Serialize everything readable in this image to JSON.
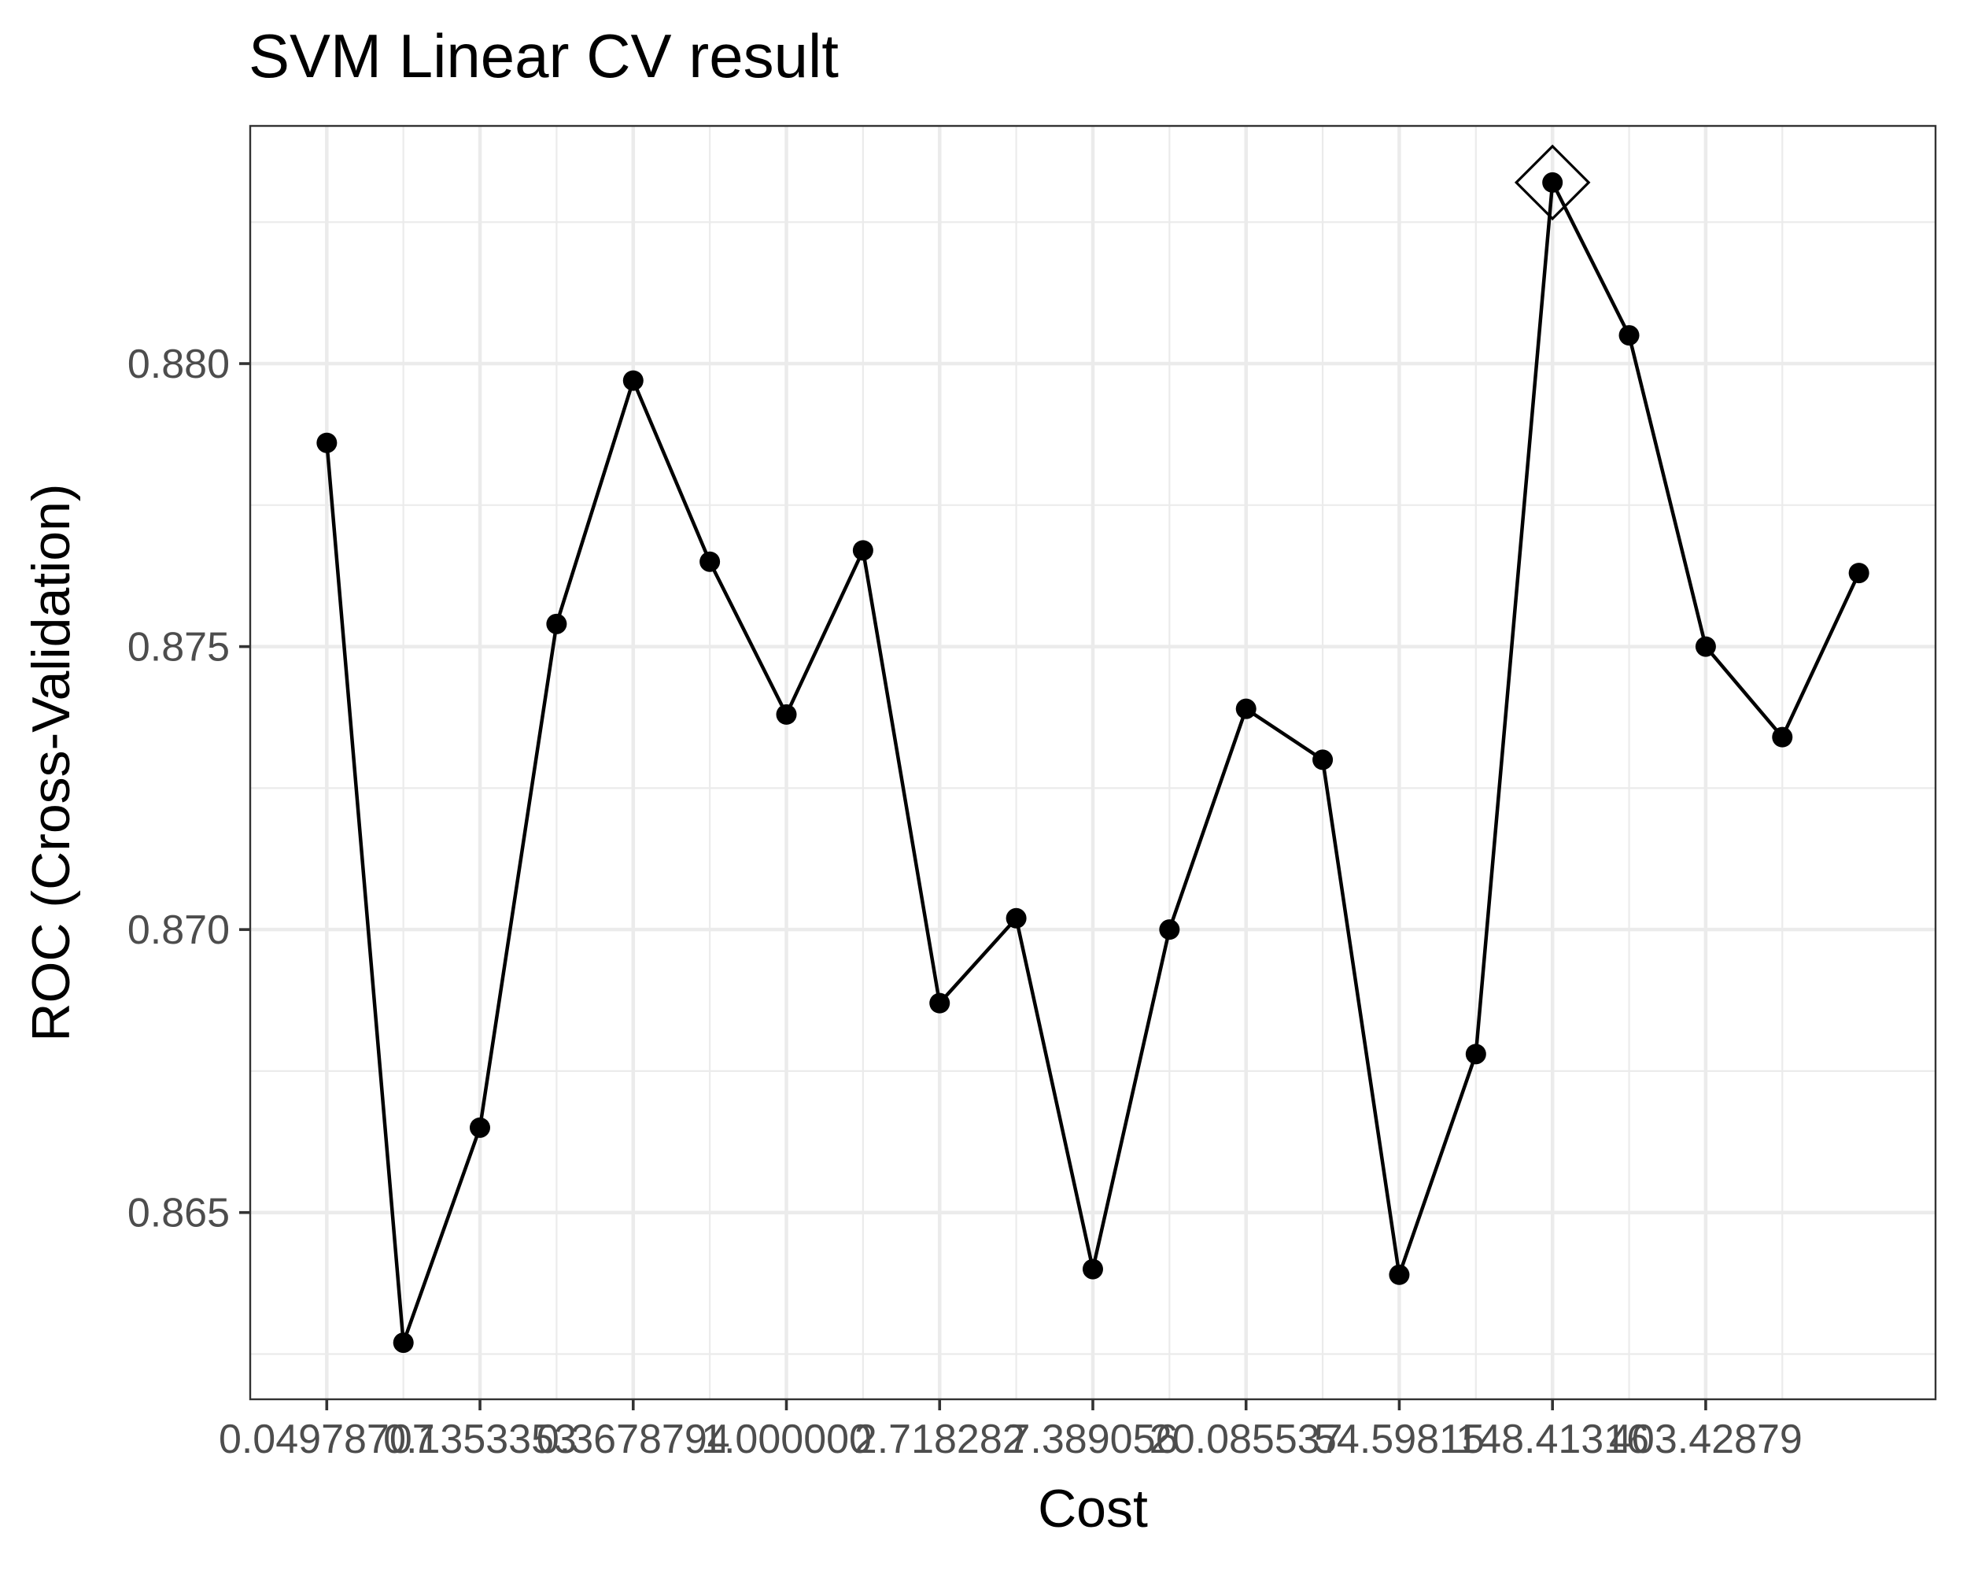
{
  "chart_data": {
    "type": "line",
    "title": "SVM Linear CV result",
    "xlabel": "Cost",
    "ylabel": "ROC (Cross-Validation)",
    "x_scale": "log",
    "x_tick_labels": [
      "0.04978707",
      "0.1353353",
      "0.3678794",
      "1.000000",
      "2.718282",
      "7.389056",
      "20.085537",
      "54.59815",
      "148.41316",
      "403.42879"
    ],
    "x_tick_values": [
      0.04978707,
      0.1353353,
      0.3678794,
      1.0,
      2.718282,
      7.389056,
      20.085537,
      54.59815,
      148.41316,
      403.42879
    ],
    "y_tick_labels": [
      "0.865",
      "0.870",
      "0.875",
      "0.880"
    ],
    "y_tick_values": [
      0.865,
      0.87,
      0.875,
      0.88
    ],
    "ylim": [
      0.8617,
      0.8842
    ],
    "grid": true,
    "legend": "none",
    "series": [
      {
        "x": [
          0.0498,
          0.0821,
          0.1353,
          0.2231,
          0.3679,
          0.6065,
          1.0,
          1.6487,
          2.7183,
          4.4817,
          7.3891,
          12.1825,
          20.0855,
          33.1155,
          54.5982,
          90.0171,
          148.4132,
          244.6919,
          403.4288,
          665.1416,
          1096.6332
        ],
        "y": [
          0.8786,
          0.8627,
          0.8665,
          0.8754,
          0.8797,
          0.8765,
          0.8738,
          0.8767,
          0.8687,
          0.8702,
          0.864,
          0.87,
          0.8739,
          0.873,
          0.8639,
          0.8678,
          0.8832,
          0.8805,
          0.875,
          0.8734,
          0.8763
        ]
      }
    ],
    "best": {
      "x": 148.4132,
      "y": 0.8832,
      "marker": "diamond"
    }
  }
}
